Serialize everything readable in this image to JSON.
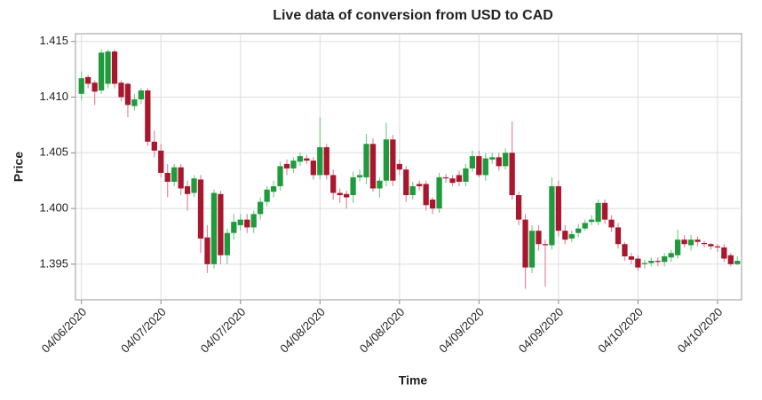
{
  "chart_data": {
    "type": "candlestick",
    "title": "Live data of conversion from USD to CAD",
    "x_label": "Time",
    "y_label": "Price",
    "categories": [
      "04/06/2020",
      null,
      null,
      null,
      null,
      null,
      null,
      null,
      null,
      null,
      null,
      null,
      "04/07/2020",
      null,
      null,
      null,
      null,
      null,
      null,
      null,
      null,
      null,
      null,
      null,
      "04/07/2020",
      null,
      null,
      null,
      null,
      null,
      null,
      null,
      null,
      null,
      null,
      null,
      "04/08/2020",
      null,
      null,
      null,
      null,
      null,
      null,
      null,
      null,
      null,
      null,
      null,
      "04/08/2020",
      null,
      null,
      null,
      null,
      null,
      null,
      null,
      null,
      null,
      null,
      null,
      "04/09/2020",
      null,
      null,
      null,
      null,
      null,
      null,
      null,
      null,
      null,
      null,
      null,
      "04/09/2020",
      null,
      null,
      null,
      null,
      null,
      null,
      null,
      null,
      null,
      null,
      null,
      "04/10/2020",
      null,
      null,
      null,
      null,
      null,
      null,
      null,
      null,
      null,
      null,
      null,
      "04/10/2020",
      null,
      null,
      null
    ],
    "open": [
      1.4103,
      1.4118,
      1.4113,
      1.4106,
      1.4112,
      1.4141,
      1.4113,
      1.4112,
      1.4092,
      1.4098,
      1.4106,
      1.406,
      1.4052,
      1.4032,
      1.4024,
      1.4037,
      1.402,
      1.4014,
      1.4026,
      1.3974,
      1.395,
      1.4013,
      1.3958,
      1.3978,
      1.3985,
      1.399,
      1.3983,
      1.3995,
      1.4006,
      1.4015,
      1.402,
      1.404,
      1.4036,
      1.4042,
      1.4045,
      1.4043,
      1.403,
      1.4055,
      1.403,
      1.4014,
      1.4013,
      1.4012,
      1.4028,
      1.4028,
      1.4058,
      1.4018,
      1.4025,
      1.4062,
      1.404,
      1.4035,
      1.4012,
      1.4022,
      1.4022,
      1.4008,
      1.4,
      1.4028,
      1.4027,
      1.403,
      1.4024,
      1.4036,
      1.4047,
      1.403,
      1.4044,
      1.4046,
      1.4038,
      1.405,
      1.4012,
      1.399,
      1.3947,
      1.398,
      1.3968,
      1.3967,
      1.402,
      1.398,
      1.3973,
      1.3978,
      1.3982,
      1.3988,
      1.3988,
      1.4005,
      1.399,
      1.3983,
      1.3968,
      1.3957,
      1.3955,
      1.395,
      1.3951,
      1.3953,
      1.3952,
      1.3956,
      1.3958,
      1.3972,
      1.3967,
      1.3972,
      1.3969,
      1.3968,
      1.3966,
      1.3965,
      1.3958,
      1.395
    ],
    "high": [
      1.4123,
      1.412,
      1.4115,
      1.4143,
      1.4143,
      1.4143,
      1.4115,
      1.4113,
      1.4103,
      1.4108,
      1.4108,
      1.407,
      1.4058,
      1.404,
      1.404,
      1.404,
      1.4025,
      1.403,
      1.403,
      1.3985,
      1.4017,
      1.4016,
      1.3982,
      1.3995,
      1.3995,
      1.3995,
      1.3998,
      1.401,
      1.402,
      1.4025,
      1.4042,
      1.4044,
      1.4046,
      1.405,
      1.4048,
      1.4046,
      1.4082,
      1.4058,
      1.4035,
      1.4018,
      1.4016,
      1.4033,
      1.4035,
      1.4067,
      1.4063,
      1.4028,
      1.4077,
      1.4066,
      1.4044,
      1.4038,
      1.4024,
      1.4025,
      1.4025,
      1.401,
      1.4032,
      1.4031,
      1.403,
      1.4034,
      1.404,
      1.4052,
      1.4052,
      1.405,
      1.405,
      1.405,
      1.4054,
      1.4078,
      1.4015,
      1.3995,
      1.3985,
      1.3985,
      1.3972,
      1.4028,
      1.4025,
      1.3985,
      1.398,
      1.3986,
      1.399,
      1.3994,
      1.4008,
      1.4008,
      1.3994,
      1.3987,
      1.397,
      1.396,
      1.3958,
      1.3954,
      1.3956,
      1.3956,
      1.396,
      1.3963,
      1.3981,
      1.3976,
      1.3976,
      1.3975,
      1.3971,
      1.3969,
      1.3968,
      1.3968,
      1.396,
      1.3957
    ],
    "low": [
      1.4097,
      1.4108,
      1.4093,
      1.4103,
      1.4108,
      1.4108,
      1.4096,
      1.4082,
      1.4088,
      1.4094,
      1.4056,
      1.4046,
      1.4028,
      1.401,
      1.402,
      1.4012,
      1.3998,
      1.401,
      1.396,
      1.3942,
      1.3946,
      1.395,
      1.395,
      1.3972,
      1.398,
      1.3978,
      1.3978,
      1.399,
      1.4002,
      1.401,
      1.4016,
      1.403,
      1.4032,
      1.4038,
      1.404,
      1.4026,
      1.4026,
      1.4026,
      1.4008,
      1.4005,
      1.4,
      1.4005,
      1.4024,
      1.4022,
      1.4015,
      1.401,
      1.402,
      1.402,
      1.403,
      1.4006,
      1.4008,
      1.4016,
      1.3998,
      1.3995,
      1.3996,
      1.4023,
      1.402,
      1.402,
      1.402,
      1.4033,
      1.4028,
      1.4025,
      1.404,
      1.4034,
      1.4035,
      1.4008,
      1.3985,
      1.3928,
      1.3942,
      1.3962,
      1.393,
      1.3963,
      1.3975,
      1.3968,
      1.397,
      1.3974,
      1.398,
      1.3985,
      1.3985,
      1.3986,
      1.3979,
      1.3964,
      1.3953,
      1.395,
      1.3944,
      1.3946,
      1.3948,
      1.3948,
      1.3948,
      1.3952,
      1.3955,
      1.3965,
      1.3962,
      1.3966,
      1.3965,
      1.3963,
      1.3961,
      1.3952,
      1.3948,
      1.3949
    ],
    "close": [
      1.4117,
      1.4112,
      1.4105,
      1.414,
      1.4141,
      1.4112,
      1.41,
      1.4093,
      1.4098,
      1.4106,
      1.406,
      1.4052,
      1.4032,
      1.4024,
      1.4037,
      1.4018,
      1.4013,
      1.4027,
      1.3973,
      1.395,
      1.4014,
      1.3958,
      1.3978,
      1.3988,
      1.399,
      1.3983,
      1.3995,
      1.4006,
      1.4017,
      1.402,
      1.4038,
      1.4036,
      1.4043,
      1.4047,
      1.4043,
      1.403,
      1.4055,
      1.403,
      1.4014,
      1.4012,
      1.401,
      1.4028,
      1.403,
      1.4058,
      1.4018,
      1.4025,
      1.4062,
      1.4025,
      1.4035,
      1.4012,
      1.402,
      1.402,
      1.4003,
      1.4,
      1.4028,
      1.4027,
      1.4023,
      1.4024,
      1.4036,
      1.4047,
      1.403,
      1.4045,
      1.4046,
      1.4038,
      1.405,
      1.4012,
      1.399,
      1.3947,
      1.398,
      1.3968,
      1.3967,
      1.402,
      1.398,
      1.3972,
      1.3977,
      1.3982,
      1.3987,
      1.399,
      1.4005,
      1.399,
      1.3983,
      1.3968,
      1.3957,
      1.3954,
      1.3947,
      1.3951,
      1.3953,
      1.3952,
      1.3957,
      1.396,
      1.3972,
      1.3968,
      1.3972,
      1.397,
      1.3968,
      1.3966,
      1.3965,
      1.3955,
      1.395,
      1.3953
    ],
    "up_color": "#1f9a3c",
    "down_color": "#a8172e",
    "up_wick_color": "#7ccf8c",
    "down_wick_color": "#e0879a",
    "ylim": [
      1.3918,
      1.4157
    ],
    "yticks": [
      1.395,
      {
        "value": 1.4,
        "label": "1.400"
      },
      1.405,
      {
        "value": 1.41,
        "label": "1.410"
      },
      1.415
    ],
    "grid": true
  }
}
